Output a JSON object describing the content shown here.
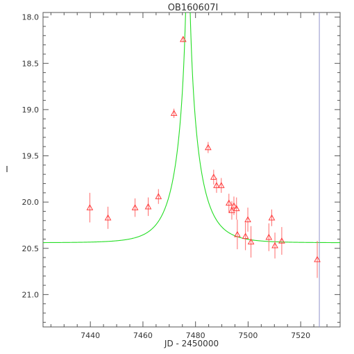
{
  "chart_data": {
    "type": "scatter",
    "title": "OB160607I",
    "xlabel": "JD - 2450000",
    "ylabel": "I",
    "xlim": [
      7422,
      7535
    ],
    "ylim": [
      21.35,
      17.95
    ],
    "y_inverted": true,
    "x_ticks": [
      7440,
      7460,
      7480,
      7500,
      7520
    ],
    "x_tick_labels": [
      "7440",
      "7460",
      "7480",
      "7500",
      "7520"
    ],
    "y_ticks": [
      18.0,
      18.5,
      19.0,
      19.5,
      20.0,
      20.5,
      21.0
    ],
    "y_tick_labels": [
      "18.0",
      "18.5",
      "19.0",
      "19.5",
      "20.0",
      "20.5",
      "21.0"
    ],
    "grid": false,
    "colors": {
      "points": "#ff3b3b",
      "errorbars": "#ff6b6b",
      "model": "#22dd22",
      "marker_line": "#8f92c8",
      "axes": "#555555"
    },
    "points": [
      {
        "x": 7439.8,
        "y": 20.06,
        "err": 0.16
      },
      {
        "x": 7446.7,
        "y": 20.17,
        "err": 0.12
      },
      {
        "x": 7457.0,
        "y": 20.06,
        "err": 0.1
      },
      {
        "x": 7462.0,
        "y": 20.05,
        "err": 0.1
      },
      {
        "x": 7465.9,
        "y": 19.94,
        "err": 0.08
      },
      {
        "x": 7471.8,
        "y": 19.04,
        "err": 0.05
      },
      {
        "x": 7475.3,
        "y": 18.24,
        "err": 0.03
      },
      {
        "x": 7484.8,
        "y": 19.41,
        "err": 0.06
      },
      {
        "x": 7486.9,
        "y": 19.73,
        "err": 0.08
      },
      {
        "x": 7488.0,
        "y": 19.82,
        "err": 0.08
      },
      {
        "x": 7489.8,
        "y": 19.82,
        "err": 0.08
      },
      {
        "x": 7492.7,
        "y": 20.01,
        "err": 0.1
      },
      {
        "x": 7493.8,
        "y": 20.09,
        "err": 0.1
      },
      {
        "x": 7494.6,
        "y": 20.04,
        "err": 0.1
      },
      {
        "x": 7495.6,
        "y": 20.07,
        "err": 0.12
      },
      {
        "x": 7495.9,
        "y": 20.35,
        "err": 0.16
      },
      {
        "x": 7499.0,
        "y": 20.37,
        "err": 0.15
      },
      {
        "x": 7499.9,
        "y": 20.19,
        "err": 0.13
      },
      {
        "x": 7501.1,
        "y": 20.43,
        "err": 0.17
      },
      {
        "x": 7507.9,
        "y": 20.38,
        "err": 0.15
      },
      {
        "x": 7509.0,
        "y": 20.17,
        "err": 0.09
      },
      {
        "x": 7510.2,
        "y": 20.47,
        "err": 0.14
      },
      {
        "x": 7512.8,
        "y": 20.42,
        "err": 0.15
      },
      {
        "x": 7526.3,
        "y": 20.62,
        "err": 0.2
      }
    ],
    "model": {
      "type": "point-lens",
      "t0": 7477.1,
      "tE": 9.5,
      "u0": 0.043,
      "baseline_mag": 20.44,
      "blend_fraction": 1.0
    },
    "vertical_marker_x": 7527.1
  }
}
